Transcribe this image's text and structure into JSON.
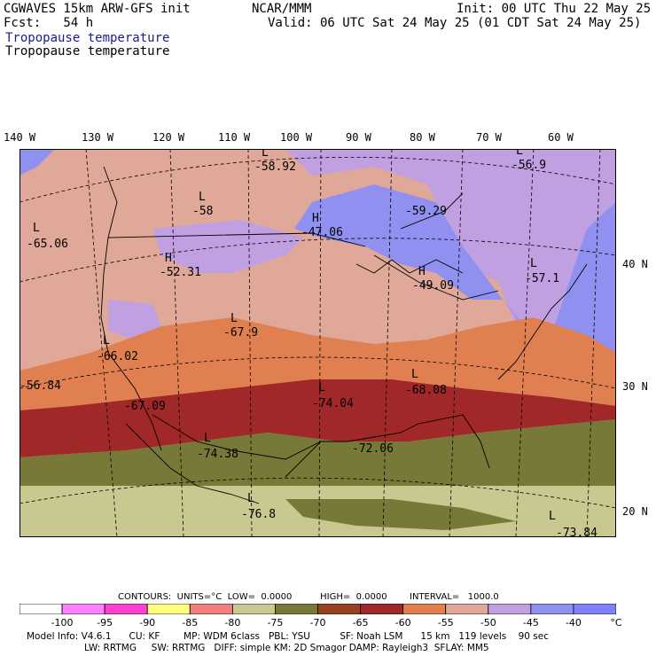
{
  "header": {
    "model": "CGWAVES 15km ARW-GFS init",
    "org": "NCAR/MMM",
    "init": "Init: 00 UTC Thu 22 May 25",
    "fcst": "Fcst:   54 h",
    "valid": "Valid: 06 UTC Sat 24 May 25 (01 CDT Sat 24 May 25)",
    "field_title_blue": "Tropopause temperature",
    "field_title_black": "Tropopause temperature"
  },
  "longitude_labels": [
    "140 W",
    "130 W",
    "120 W",
    "110 W",
    "100 W",
    "90 W",
    "80 W",
    "70 W",
    "60 W"
  ],
  "latitude_labels": [
    "40 N",
    "30 N",
    "20 N"
  ],
  "map_extremes": [
    {
      "type": "L",
      "value": "-58.92"
    },
    {
      "type": "L",
      "value": "-56.9"
    },
    {
      "type": "L",
      "value": "-58"
    },
    {
      "type": "",
      "value": "-59.29"
    },
    {
      "type": "L",
      "value": "-65.06"
    },
    {
      "type": "H",
      "value": "-47.06"
    },
    {
      "type": "H",
      "value": "-52.31"
    },
    {
      "type": "H",
      "value": "-49.09"
    },
    {
      "type": "L",
      "value": "-57.1"
    },
    {
      "type": "L",
      "value": "-67.9"
    },
    {
      "type": "L",
      "value": "-66.02"
    },
    {
      "type": "",
      "value": "-56.84"
    },
    {
      "type": "L",
      "value": "-68.08"
    },
    {
      "type": "L",
      "value": "-74.04"
    },
    {
      "type": "",
      "value": "-67.09"
    },
    {
      "type": "L",
      "value": "-74.38"
    },
    {
      "type": "",
      "value": "-72.06"
    },
    {
      "type": "L",
      "value": "-76.8"
    },
    {
      "type": "L",
      "value": "-73.84"
    }
  ],
  "contours": {
    "label": "CONTOURS:",
    "units": "UNITS=°C",
    "low": "LOW=  0.0000",
    "high": "HIGH=  0.0000",
    "interval": "INTERVAL=   1000.0"
  },
  "legend": {
    "colors": [
      "#ffffff",
      "#ff80ff",
      "#ff40d0",
      "#ffff80",
      "#f08080",
      "#c8c890",
      "#787838",
      "#984020",
      "#a02828",
      "#e08050",
      "#e0a898",
      "#c0a0e0",
      "#9090f0",
      "#8080ff",
      "#8888f8",
      "#7878f0"
    ],
    "ticks": [
      "-100",
      "-95",
      "-90",
      "-85",
      "-80",
      "-75",
      "-70",
      "-65",
      "-60",
      "-55",
      "-50",
      "-45",
      "-40",
      "°C"
    ]
  },
  "footer": {
    "line1": "Model Info: V4.6.1      CU: KF        MP: WDM 6class   PBL: YSU          SF: Noah LSM      15 km   119 levels    90 sec",
    "line2": "LW: RRTMG     SW: RRTMG   DIFF: simple KM: 2D Smagor DAMP: Rayleigh3  SFLAY: MM5"
  }
}
